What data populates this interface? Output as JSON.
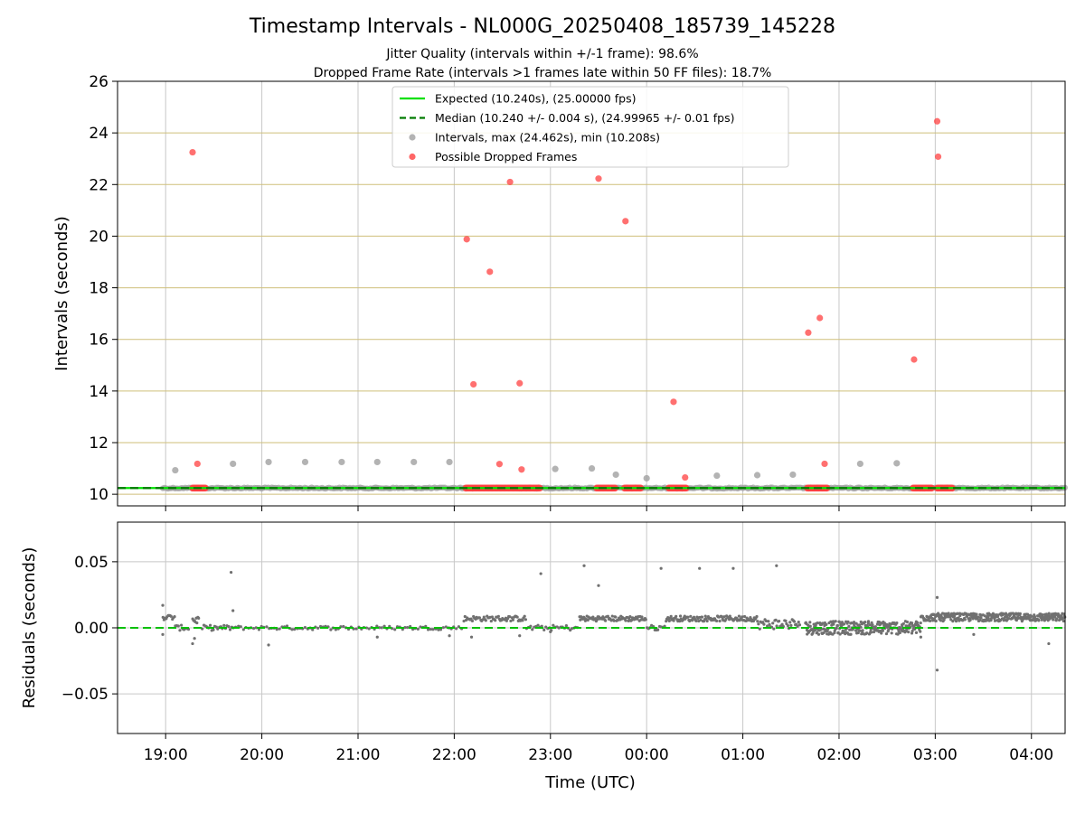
{
  "chart_data": [
    {
      "type": "scatter",
      "title": "Timestamp Intervals - NL000G_20250408_185739_145228",
      "subtitle_lines": [
        "Jitter Quality (intervals within +/-1 frame): 98.6%",
        "Dropped Frame Rate (intervals >1 frames late within 50 FF files): 18.7%"
      ],
      "ylabel": "Intervals (seconds)",
      "xlabel": "",
      "x_unit": "hours since 00:00 UTC on the first day (values >24 are the next day)",
      "xlim": [
        18.5,
        28.35
      ],
      "ylim": [
        9.55,
        26
      ],
      "yticks": [
        10,
        12,
        14,
        16,
        18,
        20,
        22,
        24,
        26
      ],
      "ytick_labels": [
        "10",
        "12",
        "14",
        "16",
        "18",
        "20",
        "22",
        "24",
        "26"
      ],
      "grid": true,
      "legend_position": "upper-center",
      "legend": [
        {
          "label": "Expected (10.240s), (25.00000 fps)",
          "style": "solid-line",
          "color": "#00e000"
        },
        {
          "label": "Median (10.240 +/- 0.004 s), (24.99965 +/- 0.01 fps)",
          "style": "dashed-line",
          "color": "#007a00"
        },
        {
          "label": "Intervals, max (24.462s), min (10.208s)",
          "style": "marker",
          "color": "#a0a0a0"
        },
        {
          "label": "Possible Dropped Frames",
          "style": "marker",
          "color": "#ff4040"
        }
      ],
      "expected_value": 10.24,
      "median_value": 10.24,
      "series": [
        {
          "name": "Intervals",
          "color": "#a0a0a0",
          "x_range": [
            18.97,
            28.35
          ],
          "baseline": 10.24,
          "points": [
            [
              19.1,
              10.93
            ],
            [
              19.7,
              11.18
            ],
            [
              20.07,
              11.25
            ],
            [
              20.45,
              11.25
            ],
            [
              20.83,
              11.25
            ],
            [
              21.2,
              11.25
            ],
            [
              21.58,
              11.25
            ],
            [
              21.95,
              11.25
            ],
            [
              23.05,
              10.98
            ],
            [
              23.43,
              11.0
            ],
            [
              23.68,
              10.76
            ],
            [
              24.0,
              10.62
            ],
            [
              24.73,
              10.72
            ],
            [
              25.15,
              10.74
            ],
            [
              25.52,
              10.76
            ],
            [
              26.22,
              11.18
            ],
            [
              26.6,
              11.2
            ]
          ]
        },
        {
          "name": "Possible Dropped Frames",
          "color": "#ff4040",
          "points": [
            [
              19.28,
              23.25
            ],
            [
              19.33,
              11.18
            ],
            [
              22.13,
              19.88
            ],
            [
              22.2,
              14.26
            ],
            [
              22.37,
              18.62
            ],
            [
              22.47,
              11.17
            ],
            [
              22.58,
              22.1
            ],
            [
              22.68,
              14.3
            ],
            [
              22.7,
              10.96
            ],
            [
              23.5,
              22.23
            ],
            [
              23.78,
              20.58
            ],
            [
              24.28,
              13.58
            ],
            [
              24.4,
              10.65
            ],
            [
              25.68,
              16.26
            ],
            [
              25.8,
              16.83
            ],
            [
              25.85,
              11.18
            ],
            [
              26.78,
              15.22
            ],
            [
              27.02,
              24.45
            ],
            [
              27.03,
              23.08
            ]
          ],
          "clusters_at_baseline": [
            [
              19.28,
              19.42
            ],
            [
              22.12,
              22.9
            ],
            [
              23.48,
              23.68
            ],
            [
              23.77,
              23.95
            ],
            [
              24.23,
              24.42
            ],
            [
              25.67,
              25.88
            ],
            [
              26.77,
              26.97
            ],
            [
              27.02,
              27.18
            ]
          ]
        }
      ]
    },
    {
      "type": "scatter",
      "title": "",
      "xlabel": "Time (UTC)",
      "ylabel": "Residuals (seconds)",
      "xlim": [
        18.5,
        28.35
      ],
      "ylim": [
        -0.08,
        0.08
      ],
      "yticks": [
        -0.05,
        0.0,
        0.05
      ],
      "ytick_labels": [
        "−0.05",
        "0.00",
        "0.05"
      ],
      "xticks": [
        19,
        20,
        21,
        22,
        23,
        24,
        25,
        26,
        27,
        28
      ],
      "xtick_labels": [
        "19:00",
        "20:00",
        "21:00",
        "22:00",
        "23:00",
        "00:00",
        "01:00",
        "02:00",
        "03:00",
        "04:00"
      ],
      "grid": true,
      "zero_line_color": "#00c000",
      "series": [
        {
          "name": "Residuals",
          "color": "#707070",
          "outliers": [
            [
              18.97,
              0.017
            ],
            [
              18.97,
              -0.005
            ],
            [
              19.28,
              -0.012
            ],
            [
              19.3,
              -0.008
            ],
            [
              19.68,
              0.042
            ],
            [
              19.7,
              0.013
            ],
            [
              20.07,
              -0.013
            ],
            [
              22.18,
              -0.007
            ],
            [
              22.68,
              -0.006
            ],
            [
              22.9,
              0.041
            ],
            [
              23.35,
              0.047
            ],
            [
              23.5,
              0.032
            ],
            [
              24.15,
              0.045
            ],
            [
              24.55,
              0.045
            ],
            [
              24.9,
              0.045
            ],
            [
              25.35,
              0.047
            ],
            [
              26.85,
              -0.007
            ],
            [
              27.02,
              -0.032
            ],
            [
              27.02,
              0.023
            ],
            [
              27.4,
              -0.005
            ],
            [
              28.18,
              -0.012
            ],
            [
              21.2,
              -0.007
            ],
            [
              21.95,
              -0.006
            ],
            [
              23.0,
              -0.003
            ]
          ],
          "segments": [
            {
              "x": [
                18.97,
                19.1
              ],
              "level": 0.008,
              "spread": 0.002,
              "density": 12
            },
            {
              "x": [
                19.1,
                19.25
              ],
              "level": 0.0,
              "spread": 0.002,
              "density": 10
            },
            {
              "x": [
                19.28,
                19.35
              ],
              "level": 0.006,
              "spread": 0.003,
              "density": 8
            },
            {
              "x": [
                19.38,
                19.7
              ],
              "level": 0.0,
              "spread": 0.002,
              "density": 20
            },
            {
              "x": [
                19.7,
                22.1
              ],
              "level": 0.0,
              "spread": 0.0015,
              "density": 90
            },
            {
              "x": [
                22.1,
                22.75
              ],
              "level": 0.007,
              "spread": 0.002,
              "density": 60
            },
            {
              "x": [
                22.75,
                22.95
              ],
              "level": 0.0,
              "spread": 0.002,
              "density": 10
            },
            {
              "x": [
                22.95,
                23.3
              ],
              "level": 0.0,
              "spread": 0.002,
              "density": 18
            },
            {
              "x": [
                23.3,
                23.65
              ],
              "level": 0.007,
              "spread": 0.002,
              "density": 40
            },
            {
              "x": [
                23.65,
                24.0
              ],
              "level": 0.007,
              "spread": 0.002,
              "density": 40
            },
            {
              "x": [
                24.0,
                24.2
              ],
              "level": 0.0,
              "spread": 0.002,
              "density": 12
            },
            {
              "x": [
                24.2,
                24.55
              ],
              "level": 0.007,
              "spread": 0.002,
              "density": 40
            },
            {
              "x": [
                24.55,
                24.9
              ],
              "level": 0.007,
              "spread": 0.002,
              "density": 40
            },
            {
              "x": [
                24.9,
                25.15
              ],
              "level": 0.007,
              "spread": 0.002,
              "density": 30
            },
            {
              "x": [
                25.15,
                25.6
              ],
              "level": 0.003,
              "spread": 0.004,
              "density": 40
            },
            {
              "x": [
                25.65,
                26.85
              ],
              "level": 0.0,
              "spread": 0.005,
              "density": 260
            },
            {
              "x": [
                26.85,
                28.35
              ],
              "level": 0.008,
              "spread": 0.003,
              "density": 320
            }
          ]
        }
      ]
    }
  ]
}
